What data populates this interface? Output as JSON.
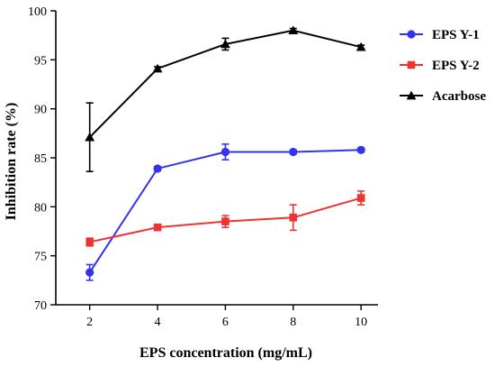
{
  "chart_data": {
    "type": "line",
    "xlabel": "EPS concentration (mg/mL)",
    "ylabel": "Inhibition rate (%)",
    "x": [
      2,
      4,
      6,
      8,
      10
    ],
    "x_ticks": [
      "2",
      "4",
      "6",
      "8",
      "10"
    ],
    "y_ticks": [
      "70",
      "75",
      "80",
      "85",
      "90",
      "95",
      "100"
    ],
    "xlim": [
      1,
      10.5
    ],
    "ylim": [
      70,
      100
    ],
    "grid": false,
    "legend_position": "top-right outside",
    "series": [
      {
        "name": "EPS Y-1",
        "color": "#3333ee",
        "marker": "circle",
        "values": [
          73.3,
          83.9,
          85.6,
          85.6,
          85.8
        ],
        "errors": [
          0.8,
          0.2,
          0.8,
          0.2,
          0.2
        ]
      },
      {
        "name": "EPS Y-2",
        "color": "#ee3333",
        "marker": "square",
        "values": [
          76.4,
          77.9,
          78.5,
          78.9,
          80.9
        ],
        "errors": [
          0.4,
          0.3,
          0.6,
          1.3,
          0.7
        ]
      },
      {
        "name": "Acarbose",
        "color": "#000000",
        "marker": "triangle",
        "values": [
          87.1,
          94.1,
          96.6,
          98.0,
          96.3
        ],
        "errors": [
          3.5,
          0.2,
          0.6,
          0.2,
          0.2
        ]
      }
    ]
  }
}
